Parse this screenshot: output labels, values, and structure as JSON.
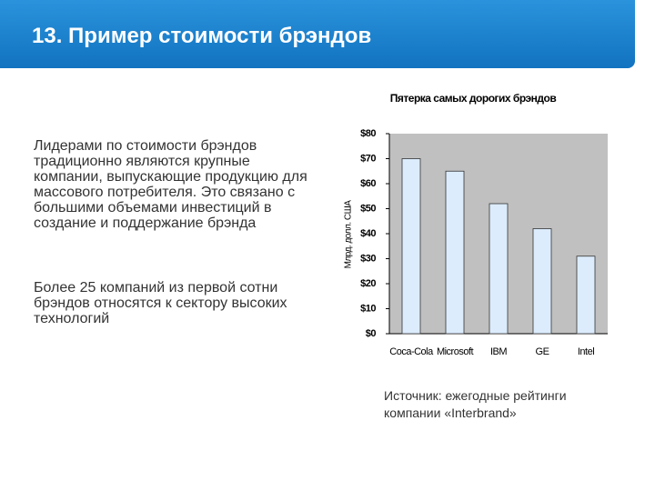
{
  "header": {
    "title": "13. Пример стоимости брэндов"
  },
  "paragraphs": [
    "Лидерами по стоимости брэндов традиционно являются крупные компании, выпускающие продукцию для массового потребителя. Это связано с большими объемами инвестиций в создание и поддержание брэнда",
    "Более 25 компаний из первой сотни брэндов относятся к сектору высоких технологий"
  ],
  "source": "Источник: ежегодные рейтинги компании «Interbrand»",
  "chart_data": {
    "type": "bar",
    "title": "Пятерка самых дорогих брэндов",
    "y_label": "Млрд. долл. США",
    "categories": [
      "Coca-Cola",
      "Microsoft",
      "IBM",
      "GE",
      "Intel"
    ],
    "values": [
      70,
      65,
      52,
      42,
      31
    ],
    "color": "#dcecfc",
    "ylim": [
      0,
      80
    ],
    "yticks": [
      {
        "value": 0,
        "label": "$0"
      },
      {
        "value": 10,
        "label": "$10"
      },
      {
        "value": 20,
        "label": "$20"
      },
      {
        "value": 30,
        "label": "$30"
      },
      {
        "value": 40,
        "label": "$40"
      },
      {
        "value": 50,
        "label": "$50"
      },
      {
        "value": 60,
        "label": "$60"
      },
      {
        "value": 70,
        "label": "$70"
      },
      {
        "value": 80,
        "label": "$80"
      }
    ]
  }
}
